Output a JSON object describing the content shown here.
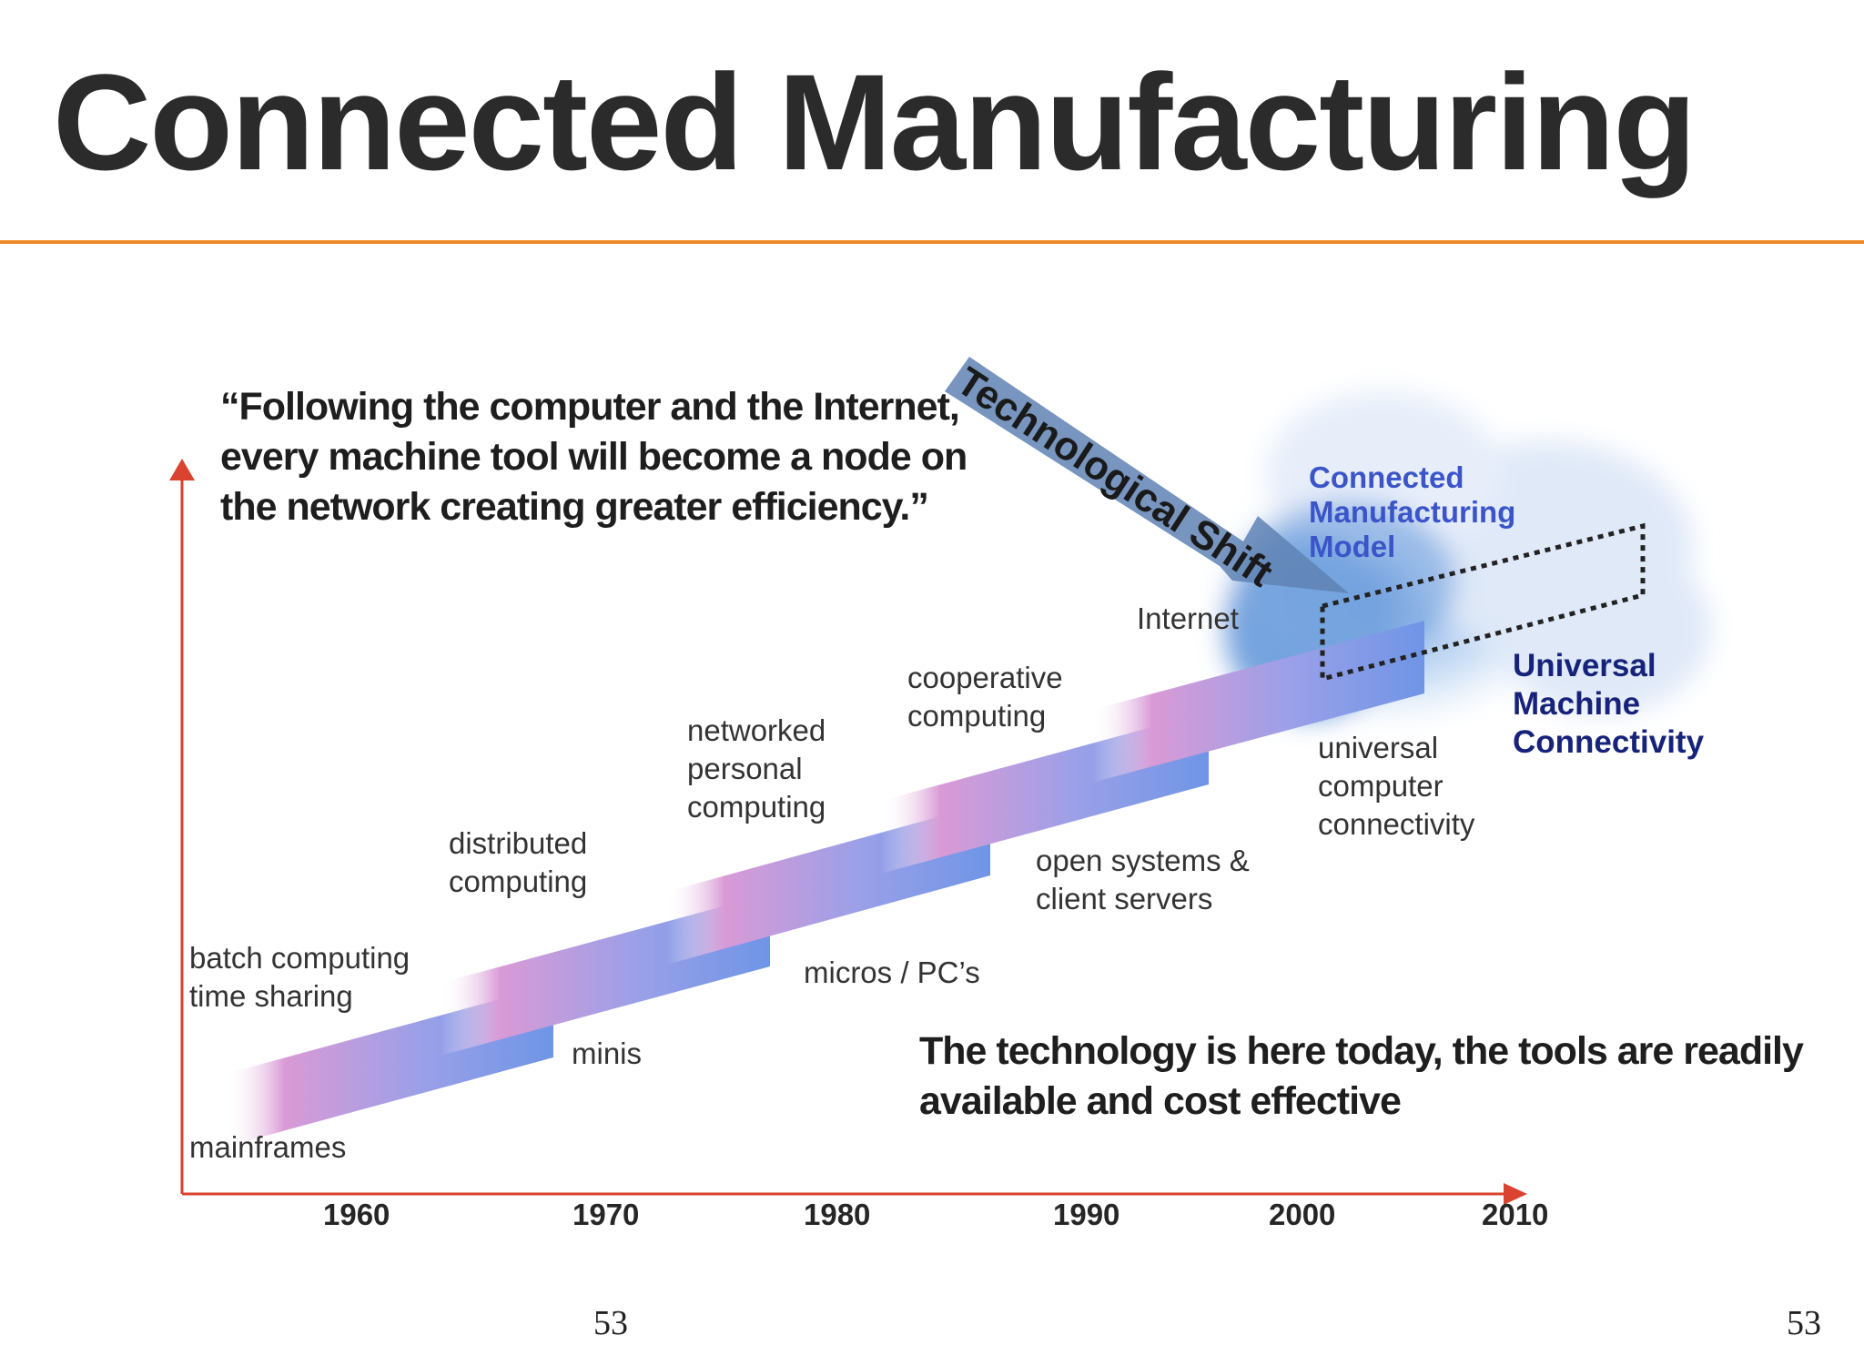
{
  "title": "Connected Manufacturing",
  "quote": [
    "“Following the computer and the Internet,",
    "every machine tool will become a node on",
    "the network creating greater efficiency.”"
  ],
  "shift_arrow_label": "Technological Shift",
  "cloud_label": [
    "Connected",
    "Manufacturing",
    "Model"
  ],
  "universal_machine": [
    "Universal",
    "Machine",
    "Connectivity"
  ],
  "eras": {
    "mainframes": "mainframes",
    "batch": [
      "batch computing",
      "time sharing"
    ],
    "minis": "minis",
    "distributed": [
      "distributed",
      "computing"
    ],
    "micros": "micros / PC’s",
    "networked": [
      "networked",
      "personal",
      "computing"
    ],
    "open_systems": [
      "open systems &",
      "client servers"
    ],
    "cooperative": [
      "cooperative",
      "computing"
    ],
    "internet": "Internet",
    "universal_computer": [
      "universal",
      "computer",
      "connectivity"
    ]
  },
  "years": [
    "1960",
    "1970",
    "1980",
    "1990",
    "2000",
    "2010"
  ],
  "bottom_statement": [
    "The technology is here today, the tools are readily",
    "available and cost effective"
  ],
  "page_number_center": "53",
  "page_number_right": "53",
  "colors": {
    "accent_orange": "#ef8a2a",
    "axis_red": "#d9432f",
    "band_blue": "#6f95e6",
    "band_pink": "#d99ad6",
    "cloud_label_blue": "#3b55c9",
    "navy": "#17237a"
  }
}
